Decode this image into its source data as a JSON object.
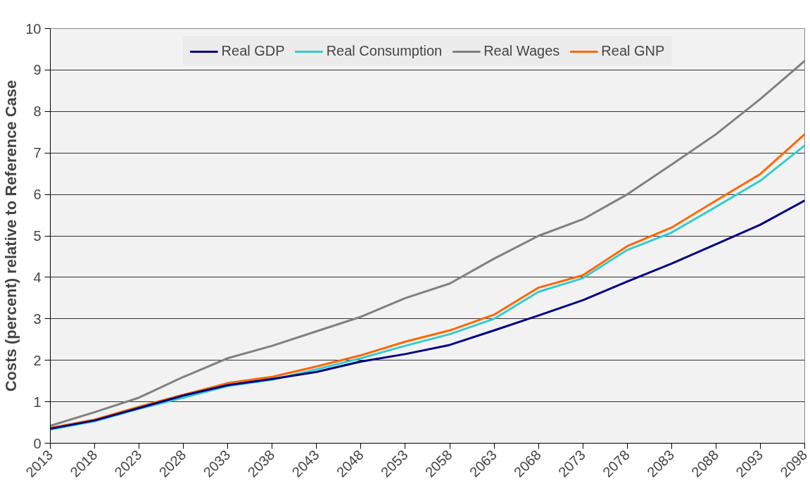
{
  "chart_data": {
    "type": "line",
    "ylabel": "Costs (percent) relative to Reference Case",
    "x": [
      2013,
      2018,
      2023,
      2028,
      2033,
      2038,
      2043,
      2048,
      2053,
      2058,
      2063,
      2068,
      2073,
      2078,
      2083,
      2088,
      2093,
      2098
    ],
    "series": [
      {
        "name": "Real GDP",
        "color": "#000080",
        "values": [
          0.35,
          0.55,
          0.85,
          1.15,
          1.4,
          1.55,
          1.72,
          1.97,
          2.15,
          2.37,
          2.72,
          3.08,
          3.45,
          3.9,
          4.33,
          4.8,
          5.27,
          5.85
        ]
      },
      {
        "name": "Real Consumption",
        "color": "#33cccc",
        "values": [
          0.33,
          0.53,
          0.83,
          1.1,
          1.38,
          1.53,
          1.78,
          2.05,
          2.35,
          2.63,
          3.0,
          3.65,
          3.98,
          4.66,
          5.08,
          5.7,
          6.33,
          7.18
        ]
      },
      {
        "name": "Real Wages",
        "color": "#808080",
        "values": [
          0.42,
          0.75,
          1.1,
          1.6,
          2.05,
          2.35,
          2.7,
          3.05,
          3.5,
          3.85,
          4.45,
          5.0,
          5.4,
          6.0,
          6.72,
          7.45,
          8.3,
          9.22
        ]
      },
      {
        "name": "Real GNP",
        "color": "#ff6600",
        "values": [
          0.37,
          0.57,
          0.88,
          1.17,
          1.45,
          1.6,
          1.85,
          2.12,
          2.45,
          2.72,
          3.1,
          3.75,
          4.05,
          4.75,
          5.2,
          5.85,
          6.49,
          7.45
        ]
      }
    ],
    "xlim": [
      2013,
      2098
    ],
    "xticks": [
      2013,
      2018,
      2023,
      2028,
      2033,
      2038,
      2043,
      2048,
      2053,
      2058,
      2063,
      2068,
      2073,
      2078,
      2083,
      2088,
      2093,
      2098
    ],
    "ylim": [
      0,
      10
    ],
    "yticks": [
      0,
      1,
      2,
      3,
      4,
      5,
      6,
      7,
      8,
      9,
      10
    ],
    "grid": "y",
    "legend": "top",
    "line_style": "solid",
    "marker": "none"
  }
}
